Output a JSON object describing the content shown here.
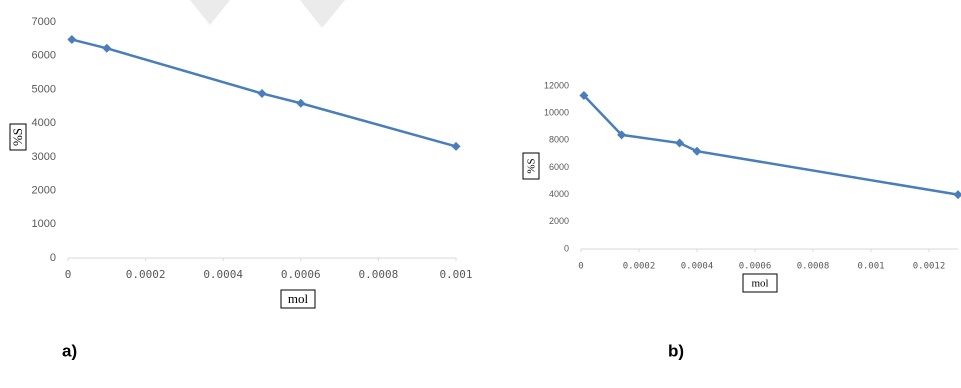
{
  "charts": [
    {
      "chart_data": {
        "type": "line",
        "ylabel": "%S",
        "xlabel": "mol",
        "x": [
          1e-05,
          0.0001,
          0.0005,
          0.0006,
          0.001
        ],
        "series": [
          {
            "color": "#4a7ebb",
            "values": [
              6480,
              6220,
              4880,
              4590,
              3310
            ]
          }
        ],
        "xlim": [
          0,
          0.001
        ],
        "xticks": [
          0,
          0.0002,
          0.0004,
          0.0006,
          0.0008,
          0.001
        ],
        "ylim": [
          0,
          7000
        ],
        "yticks": [
          0,
          1000,
          2000,
          3000,
          4000,
          5000,
          6000,
          7000
        ]
      },
      "caption": "a)"
    },
    {
      "chart_data": {
        "type": "line",
        "ylabel": "%S",
        "xlabel": "mol",
        "x": [
          1e-05,
          0.00014,
          0.00034,
          0.0004,
          0.0013
        ],
        "series": [
          {
            "color": "#4a7ebb",
            "values": [
              11300,
              8400,
              7800,
              7200,
              4000
            ]
          }
        ],
        "xlim": [
          0,
          0.0013
        ],
        "xticks": [
          0,
          0.0002,
          0.0004,
          0.0006,
          0.0008,
          0.001,
          0.0012
        ],
        "ylim": [
          0,
          12000
        ],
        "yticks": [
          0,
          2000,
          4000,
          6000,
          8000,
          10000,
          12000
        ]
      },
      "caption": "b)"
    }
  ]
}
